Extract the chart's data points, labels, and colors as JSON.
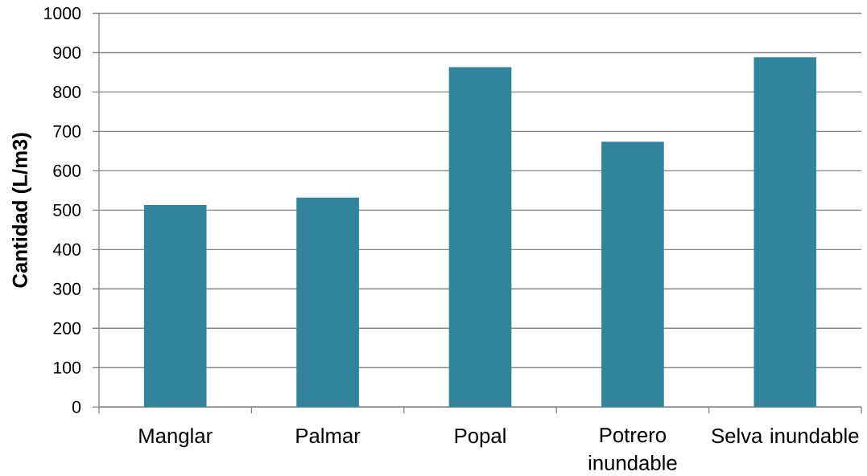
{
  "chart_data": {
    "type": "bar",
    "ylabel": "Cantidad (L/m3)",
    "categories": [
      "Manglar",
      "Palmar",
      "Popal",
      "Potrero inundable",
      "Selva inundable"
    ],
    "values": [
      513,
      532,
      863,
      674,
      888
    ],
    "color": "#31849b",
    "ylim": [
      0,
      1000
    ],
    "yticks": [
      0,
      100,
      200,
      300,
      400,
      500,
      600,
      700,
      800,
      900,
      1000
    ],
    "grid": "y"
  }
}
